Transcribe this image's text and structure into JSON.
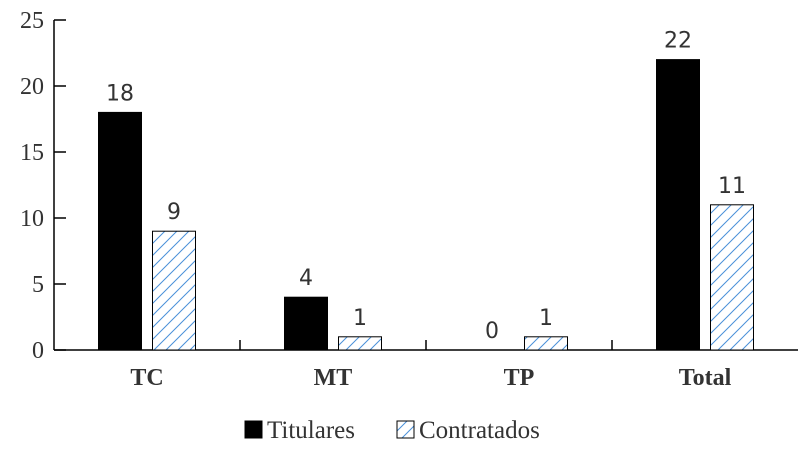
{
  "chart_data": {
    "type": "bar",
    "categories": [
      "TC",
      "MT",
      "TP",
      "Total"
    ],
    "series": [
      {
        "name": "Titulares",
        "values": [
          18,
          4,
          0,
          22
        ],
        "data_labels": [
          "18",
          "4",
          "0",
          "22"
        ],
        "fill": "#000000",
        "pattern": "solid"
      },
      {
        "name": "Contratados",
        "values": [
          9,
          1,
          1,
          11
        ],
        "data_labels": [
          "9",
          "1",
          "1",
          "11"
        ],
        "fill": "#ffffff",
        "pattern": "diagonal-hatch",
        "hatch_color": "#4a90d9"
      }
    ],
    "y_ticks": [
      "0",
      "5",
      "10",
      "15",
      "20",
      "25"
    ],
    "ylim": [
      0,
      25
    ],
    "title": "",
    "xlabel": "",
    "ylabel": "",
    "grid": false,
    "legend_position": "bottom-center"
  }
}
